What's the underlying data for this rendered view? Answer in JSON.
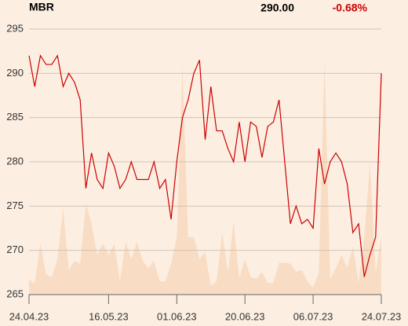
{
  "chart_data": {
    "type": "line",
    "ticker": "MBR",
    "price": "290.00",
    "change": "-0.68%",
    "change_color": "#cc0000",
    "categories": [
      "24.04.23",
      null,
      null,
      null,
      null,
      null,
      null,
      null,
      null,
      null,
      null,
      null,
      null,
      null,
      "16.05.23",
      null,
      null,
      null,
      null,
      null,
      null,
      null,
      null,
      null,
      null,
      null,
      "01.06.23",
      null,
      null,
      null,
      null,
      null,
      null,
      null,
      null,
      null,
      null,
      null,
      "20.06.23",
      null,
      null,
      null,
      null,
      null,
      null,
      null,
      null,
      null,
      null,
      null,
      "06.07.23",
      null,
      null,
      null,
      null,
      null,
      null,
      null,
      null,
      null,
      null,
      null,
      "24.07.23"
    ],
    "series": [
      {
        "color": "#cc0000",
        "values": [
          292,
          288.5,
          292,
          291,
          291,
          292,
          288.5,
          290,
          289,
          287,
          277,
          281,
          278,
          277,
          281,
          279.5,
          277,
          278,
          280,
          278,
          278,
          278,
          280,
          277,
          278,
          273.5,
          280,
          285,
          287,
          290,
          291.5,
          282.5,
          288.5,
          283.5,
          283.5,
          281.5,
          280,
          284.5,
          280,
          284.5,
          284,
          280.5,
          284,
          284.5,
          287,
          280,
          273,
          275,
          273,
          273.5,
          272.5,
          281.5,
          277.5,
          280,
          281,
          280,
          277.5,
          272,
          273,
          267,
          269.5,
          271.5,
          290
        ]
      }
    ],
    "volume": {
      "color": "#f9dcc4",
      "values": [
        266.7,
        266.3,
        270.8,
        267.3,
        267,
        269,
        274.8,
        267.8,
        268.8,
        268.5,
        275.3,
        273,
        269.5,
        270.8,
        269.5,
        270.7,
        266.5,
        271,
        269,
        271,
        268.8,
        268,
        268.8,
        266.5,
        266.5,
        268.5,
        271.5,
        291,
        271.5,
        271.5,
        269,
        269.8,
        266,
        266.5,
        272,
        267.5,
        273.3,
        266.8,
        269,
        267,
        266.8,
        267.6,
        266.3,
        266.3,
        268.6,
        268.6,
        268.5,
        267.6,
        267.8,
        266.5,
        265.8,
        267.5,
        291.5,
        266.8,
        268,
        269.5,
        268,
        270.5,
        266.3,
        271.5,
        280,
        267.5,
        271.5
      ]
    },
    "ylim": [
      265,
      295
    ],
    "yticks": [
      265,
      270,
      275,
      280,
      285,
      290,
      295
    ],
    "grid": true
  }
}
